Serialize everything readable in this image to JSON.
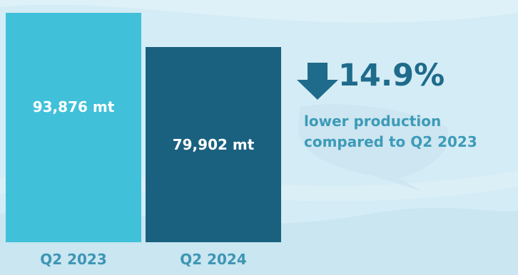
{
  "colors": {
    "background": "#d4ecf5",
    "bar_2023": "#41c0da",
    "bar_2024": "#1a6180",
    "accent_text": "#1f6b8c",
    "note_text": "#3d9bb8",
    "label_text": "#3e95b4"
  },
  "chart_data": {
    "type": "bar",
    "categories": [
      "Q2 2023",
      "Q2 2024"
    ],
    "values": [
      93876,
      79902
    ],
    "value_labels": [
      "93,876 mt",
      "79,902 mt"
    ],
    "unit": "mt",
    "ylim": [
      0,
      99000
    ],
    "grid": false,
    "legend": "none"
  },
  "callout": {
    "icon": "down-arrow-icon",
    "change": "14.9%",
    "line1": "lower production",
    "line2": "compared to Q2 2023"
  }
}
